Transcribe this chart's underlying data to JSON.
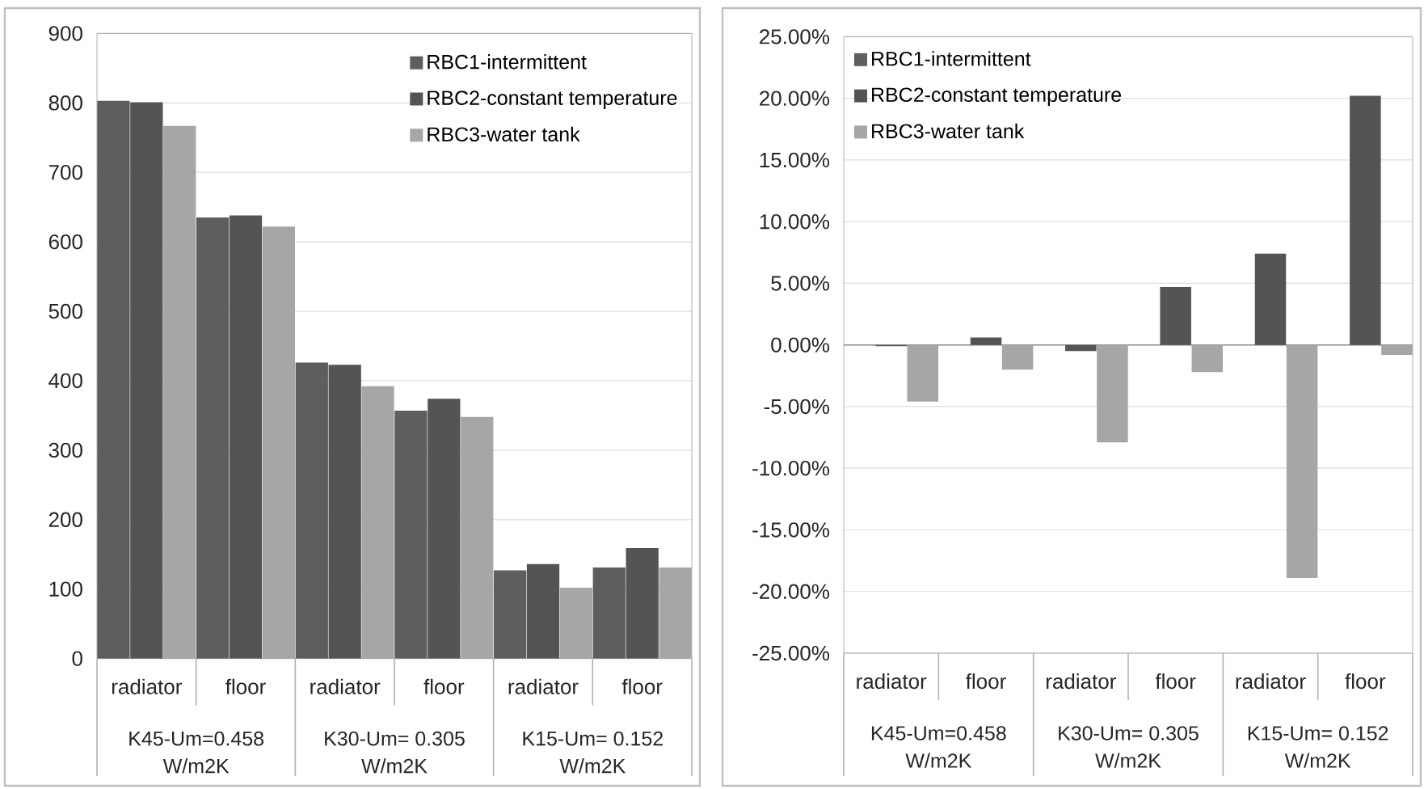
{
  "chart_data": [
    {
      "type": "bar",
      "categories": [
        "radiator",
        "floor",
        "radiator",
        "floor",
        "radiator",
        "floor"
      ],
      "annotations": [
        "K45-Um=0.458 W/m2K",
        "K30-Um= 0.305 W/m2K",
        "K15-Um= 0.152 W/m2K"
      ],
      "series": [
        {
          "name": "RBC1-intermittent",
          "color": "#5e5e5e",
          "values": [
            803,
            635,
            426,
            357,
            127,
            131
          ]
        },
        {
          "name": "RBC2-constant temperature",
          "color": "#545454",
          "values": [
            801,
            638,
            423,
            374,
            136,
            159
          ]
        },
        {
          "name": "RBC3-water tank",
          "color": "#a6a6a6",
          "values": [
            767,
            622,
            392,
            348,
            102,
            131
          ]
        }
      ],
      "ylim": [
        0,
        900
      ],
      "yticks": [
        0,
        100,
        200,
        300,
        400,
        500,
        600,
        700,
        800,
        900
      ],
      "grid": "y",
      "legend": "top right"
    },
    {
      "type": "bar",
      "categories": [
        "radiator",
        "floor",
        "radiator",
        "floor",
        "radiator",
        "floor"
      ],
      "annotations": [
        "K45-Um=0.458 W/m2K",
        "K30-Um= 0.305 W/m2K",
        "K15-Um= 0.152 W/m2K"
      ],
      "series": [
        {
          "name": "RBC1-intermittent",
          "color": "#5e5e5e",
          "values": [
            0,
            0,
            0,
            0,
            0,
            0
          ]
        },
        {
          "name": "RBC2-constant temperature",
          "color": "#545454",
          "values": [
            -0.1,
            0.6,
            -0.5,
            4.7,
            7.4,
            20.2
          ]
        },
        {
          "name": "RBC3-water tank",
          "color": "#a6a6a6",
          "values": [
            -4.6,
            -2.0,
            -7.9,
            -2.2,
            -18.9,
            -0.8
          ]
        }
      ],
      "ylim": [
        -25,
        25
      ],
      "yticks": [
        {
          "value": -25,
          "label": "-25.00%"
        },
        {
          "value": -20,
          "label": "-20.00%"
        },
        {
          "value": -15,
          "label": "-15.00%"
        },
        {
          "value": -10,
          "label": "-10.00%"
        },
        {
          "value": -5,
          "label": "-5.00%"
        },
        {
          "value": 0,
          "label": "0.00%"
        },
        {
          "value": 5,
          "label": "5.00%"
        },
        {
          "value": 10,
          "label": "10.00%"
        },
        {
          "value": 15,
          "label": "15.00%"
        },
        {
          "value": 20,
          "label": "20.00%"
        },
        {
          "value": 25,
          "label": "25.00%"
        }
      ],
      "grid": "y",
      "legend": "top left"
    }
  ]
}
